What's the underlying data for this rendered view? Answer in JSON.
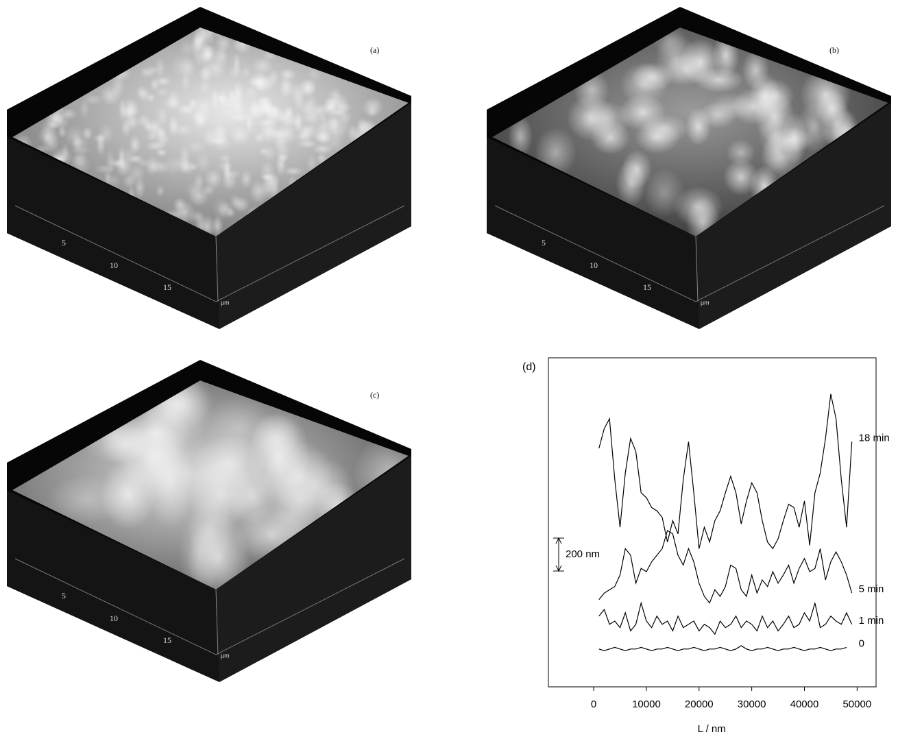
{
  "panels": [
    {
      "label": "(a)",
      "ticks": [
        "5",
        "10",
        "15"
      ],
      "unit": "µm"
    },
    {
      "label": "(b)",
      "ticks": [
        "5",
        "10",
        "15"
      ],
      "unit": "µm"
    },
    {
      "label": "(c)",
      "ticks": [
        "5",
        "10",
        "15"
      ],
      "unit": "µm"
    }
  ],
  "chart_data": {
    "type": "line",
    "panel_label": "(d)",
    "x_label": "L / nm",
    "xlim": [
      -8600,
      53600
    ],
    "xticks": [
      0,
      10000,
      20000,
      30000,
      40000,
      50000
    ],
    "ylim": [
      0,
      2000
    ],
    "scale_bar": {
      "value": 200,
      "label": "200 nm"
    },
    "x": [
      1000,
      2000,
      3000,
      4000,
      5000,
      6000,
      7000,
      8000,
      9000,
      10000,
      11000,
      12000,
      13000,
      14000,
      15000,
      16000,
      17000,
      18000,
      19000,
      20000,
      21000,
      22000,
      23000,
      24000,
      25000,
      26000,
      27000,
      28000,
      29000,
      30000,
      31000,
      32000,
      33000,
      34000,
      35000,
      36000,
      37000,
      38000,
      39000,
      40000,
      41000,
      42000,
      43000,
      44000,
      45000,
      46000,
      47000,
      48000,
      49000
    ],
    "series": [
      {
        "name": "18 min",
        "color": "#000000",
        "values": [
          1450,
          1570,
          1630,
          1260,
          970,
          1300,
          1510,
          1430,
          1180,
          1150,
          1090,
          1070,
          1030,
          880,
          1010,
          930,
          1260,
          1490,
          1180,
          840,
          970,
          880,
          1010,
          1070,
          1180,
          1280,
          1180,
          990,
          1130,
          1240,
          1180,
          1010,
          880,
          840,
          900,
          1010,
          1110,
          1090,
          970,
          1130,
          860,
          1180,
          1300,
          1510,
          1780,
          1630,
          1260,
          970,
          1490
        ]
      },
      {
        "name": "5 min",
        "color": "#000000",
        "values": [
          530,
          570,
          590,
          610,
          680,
          840,
          800,
          630,
          720,
          700,
          760,
          800,
          840,
          950,
          930,
          800,
          740,
          840,
          760,
          630,
          550,
          510,
          590,
          550,
          610,
          740,
          720,
          590,
          550,
          680,
          570,
          650,
          610,
          700,
          630,
          680,
          740,
          630,
          720,
          780,
          700,
          720,
          840,
          650,
          760,
          820,
          760,
          680,
          570
        ]
      },
      {
        "name": "1 min",
        "color": "#000000",
        "values": [
          430,
          470,
          380,
          400,
          360,
          450,
          340,
          380,
          510,
          400,
          360,
          430,
          380,
          400,
          340,
          430,
          360,
          380,
          400,
          340,
          380,
          360,
          320,
          400,
          360,
          380,
          430,
          360,
          400,
          380,
          340,
          430,
          360,
          400,
          340,
          380,
          430,
          360,
          380,
          450,
          400,
          510,
          360,
          380,
          430,
          400,
          380,
          450,
          380
        ]
      },
      {
        "name": "0",
        "color": "#000000",
        "values": [
          230,
          220,
          230,
          240,
          230,
          220,
          230,
          230,
          240,
          230,
          220,
          230,
          230,
          240,
          230,
          220,
          230,
          230,
          240,
          230,
          220,
          230,
          230,
          240,
          230,
          220,
          230,
          250,
          230,
          220,
          230,
          230,
          240,
          230,
          220,
          230,
          230,
          240,
          230,
          220,
          230,
          230,
          240,
          230,
          220,
          230,
          230,
          240,
          null
        ]
      }
    ]
  }
}
